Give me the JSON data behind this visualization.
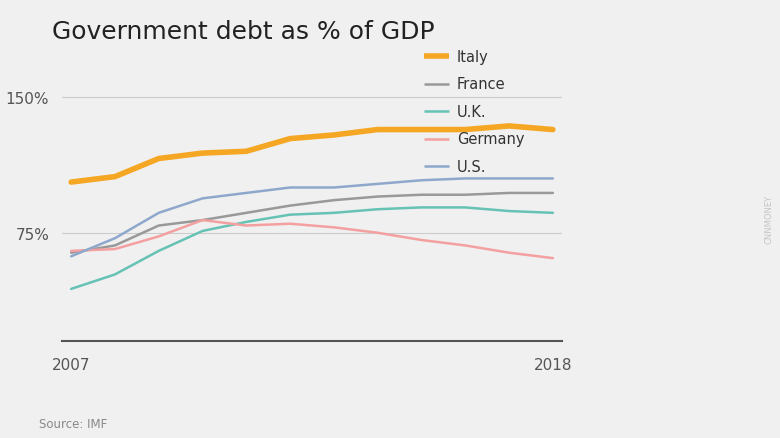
{
  "title": "Government debt as % of GDP",
  "source": "Source: IMF",
  "watermark": "CNNMONEY",
  "years": [
    2007,
    2008,
    2009,
    2010,
    2011,
    2012,
    2013,
    2014,
    2015,
    2016,
    2017,
    2018
  ],
  "series": {
    "Italy": {
      "color": "#F5A623",
      "linewidth": 4.0,
      "values": [
        103,
        106,
        116,
        119,
        120,
        127,
        129,
        132,
        132,
        132,
        134,
        132
      ]
    },
    "France": {
      "color": "#999999",
      "linewidth": 1.8,
      "values": [
        64,
        68,
        79,
        82,
        86,
        90,
        93,
        95,
        96,
        96,
        97,
        97
      ]
    },
    "U.K.": {
      "color": "#66C2B5",
      "linewidth": 1.8,
      "values": [
        44,
        52,
        65,
        76,
        81,
        85,
        86,
        88,
        89,
        89,
        87,
        86
      ]
    },
    "Germany": {
      "color": "#F4A0A0",
      "linewidth": 1.8,
      "values": [
        65,
        66,
        73,
        82,
        79,
        80,
        78,
        75,
        71,
        68,
        64,
        61
      ]
    },
    "U.S.": {
      "color": "#8EA8CC",
      "linewidth": 1.8,
      "values": [
        62,
        72,
        86,
        94,
        97,
        100,
        100,
        102,
        104,
        105,
        105,
        105
      ]
    }
  },
  "yticks": [
    75,
    150
  ],
  "ylim": [
    15,
    175
  ],
  "xlim_min": 2007,
  "xlim_max": 2018,
  "background_color": "#F0F0F0",
  "grid_color": "#CCCCCC",
  "title_fontsize": 18,
  "axis_fontsize": 11,
  "legend_fontsize": 10.5
}
